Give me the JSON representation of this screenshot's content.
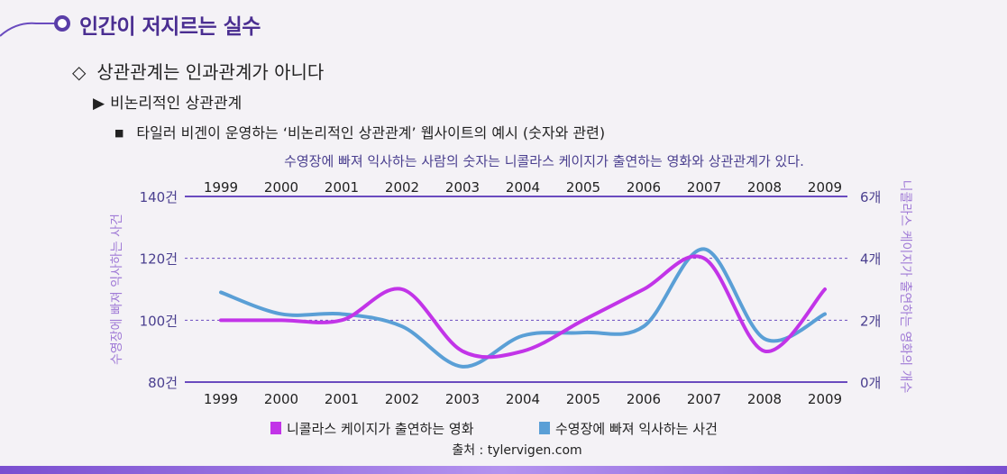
{
  "slide": {
    "title": "인간이 저지르는 실수",
    "level1": {
      "bullet": "◇",
      "text": "상관관계는 인과관계가 아니다"
    },
    "level2": {
      "bullet": "▶",
      "text": "비논리적인 상관관계"
    },
    "level3": {
      "bullet": "■",
      "text": "타일러 비겐이 운영하는 ‘비논리적인 상관관계’ 웹사이트의 예시 (숫자와 관련)"
    },
    "caption": "수영장에 빠져 익사하는 사람의 숫자는 니콜라스 케이지가 출연하는 영화와 상관관계가 있다.",
    "source": "출처 : tylervigen.com"
  },
  "colors": {
    "accent": "#5a3ea8",
    "axis_text": "#4a3f8f",
    "left_label": "#a07ad6",
    "series_cage": "#c234e8",
    "series_drown": "#5a9fd6"
  },
  "chart_data": {
    "type": "line",
    "x": [
      "1999",
      "2000",
      "2001",
      "2002",
      "2003",
      "2004",
      "2005",
      "2006",
      "2007",
      "2008",
      "2009"
    ],
    "ylabel_left": "수영장에 빠져 익사하는 사건",
    "ylabel_right": "니콜라스 케이지가 출연하는 영화의 개수",
    "yleft_ticks": [
      "140건",
      "120건",
      "100건",
      "80건"
    ],
    "yright_ticks": [
      "6개",
      "4개",
      "2개",
      "0개"
    ],
    "yleft_range": [
      80,
      140
    ],
    "yright_range": [
      0,
      6
    ],
    "grid": "dashed",
    "legend_position": "bottom",
    "series": [
      {
        "name": "니콜라스 케이지가 출연하는 영화",
        "axis": "right",
        "values": [
          2,
          2,
          2,
          3,
          1,
          1,
          2,
          3,
          4,
          1,
          3
        ]
      },
      {
        "name": "수영장에 빠져 익사하는 사건",
        "axis": "left",
        "values": [
          109,
          102,
          102,
          98,
          85,
          95,
          96,
          98,
          123,
          94,
          102
        ]
      }
    ]
  }
}
